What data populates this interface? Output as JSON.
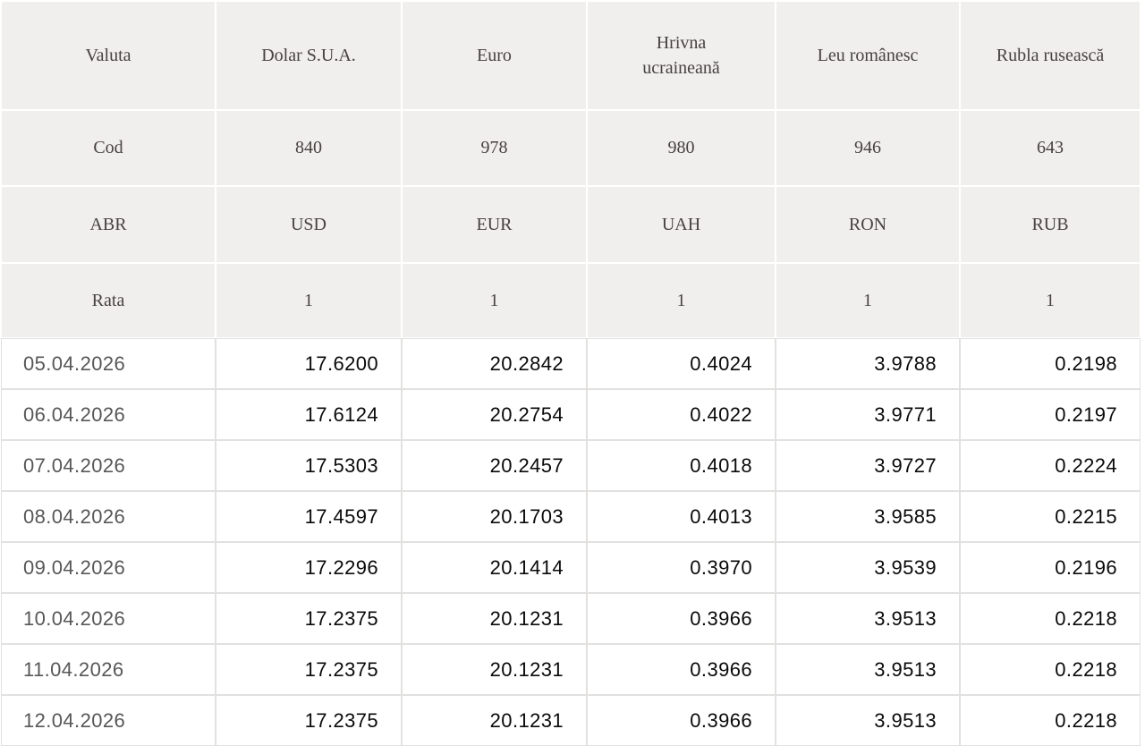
{
  "colors": {
    "page_bg": "#ffffff",
    "header_cell_bg": "#f0efed",
    "header_text": "#46423f",
    "grid_line": "#e2e1df",
    "date_text": "#575757",
    "value_text": "#0a0a0a"
  },
  "chart_data": {
    "type": "table",
    "header": {
      "row_labels": [
        "Valuta",
        "Cod",
        "ABR",
        "Rata"
      ],
      "currencies": [
        "Dolar S.U.A.",
        "Euro",
        "Hrivna\nucraineană",
        "Leu românesc",
        "Rubla rusească"
      ],
      "codes": [
        "840",
        "978",
        "980",
        "946",
        "643"
      ],
      "abbreviations": [
        "USD",
        "EUR",
        "UAH",
        "RON",
        "RUB"
      ],
      "rates_base": [
        "1",
        "1",
        "1",
        "1",
        "1"
      ]
    },
    "rows": [
      {
        "date": "05.04.2026",
        "values": [
          "17.6200",
          "20.2842",
          "0.4024",
          "3.9788",
          "0.2198"
        ]
      },
      {
        "date": "06.04.2026",
        "values": [
          "17.6124",
          "20.2754",
          "0.4022",
          "3.9771",
          "0.2197"
        ]
      },
      {
        "date": "07.04.2026",
        "values": [
          "17.5303",
          "20.2457",
          "0.4018",
          "3.9727",
          "0.2224"
        ]
      },
      {
        "date": "08.04.2026",
        "values": [
          "17.4597",
          "20.1703",
          "0.4013",
          "3.9585",
          "0.2215"
        ]
      },
      {
        "date": "09.04.2026",
        "values": [
          "17.2296",
          "20.1414",
          "0.3970",
          "3.9539",
          "0.2196"
        ]
      },
      {
        "date": "10.04.2026",
        "values": [
          "17.2375",
          "20.1231",
          "0.3966",
          "3.9513",
          "0.2218"
        ]
      },
      {
        "date": "11.04.2026",
        "values": [
          "17.2375",
          "20.1231",
          "0.3966",
          "3.9513",
          "0.2218"
        ]
      },
      {
        "date": "12.04.2026",
        "values": [
          "17.2375",
          "20.1231",
          "0.3966",
          "3.9513",
          "0.2218"
        ]
      }
    ]
  }
}
